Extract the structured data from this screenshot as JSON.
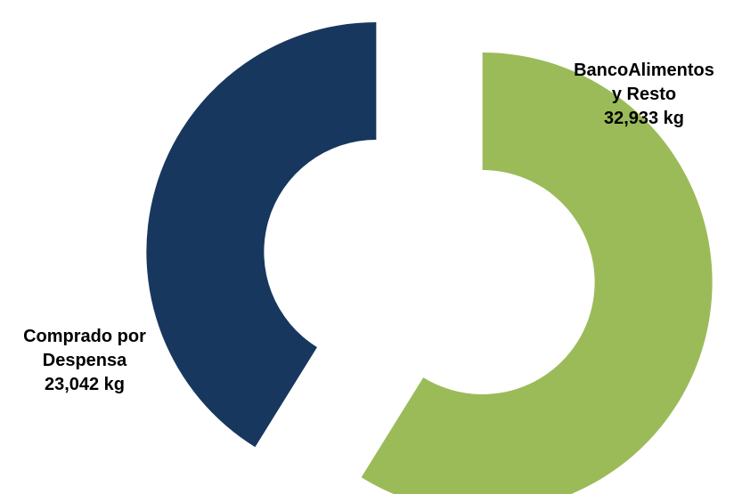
{
  "chart_data": {
    "type": "pie",
    "variant": "exploded-donut",
    "slices": [
      {
        "label_lines": [
          "BancoAlimentos",
          "y Resto"
        ],
        "value": 32933,
        "value_text": "32,933 kg",
        "color": "#9BBB59"
      },
      {
        "label_lines": [
          "Comprado por",
          "Despensa"
        ],
        "value": 23042,
        "value_text": "23,042 kg",
        "color": "#17375E"
      }
    ],
    "unit": "kg"
  }
}
